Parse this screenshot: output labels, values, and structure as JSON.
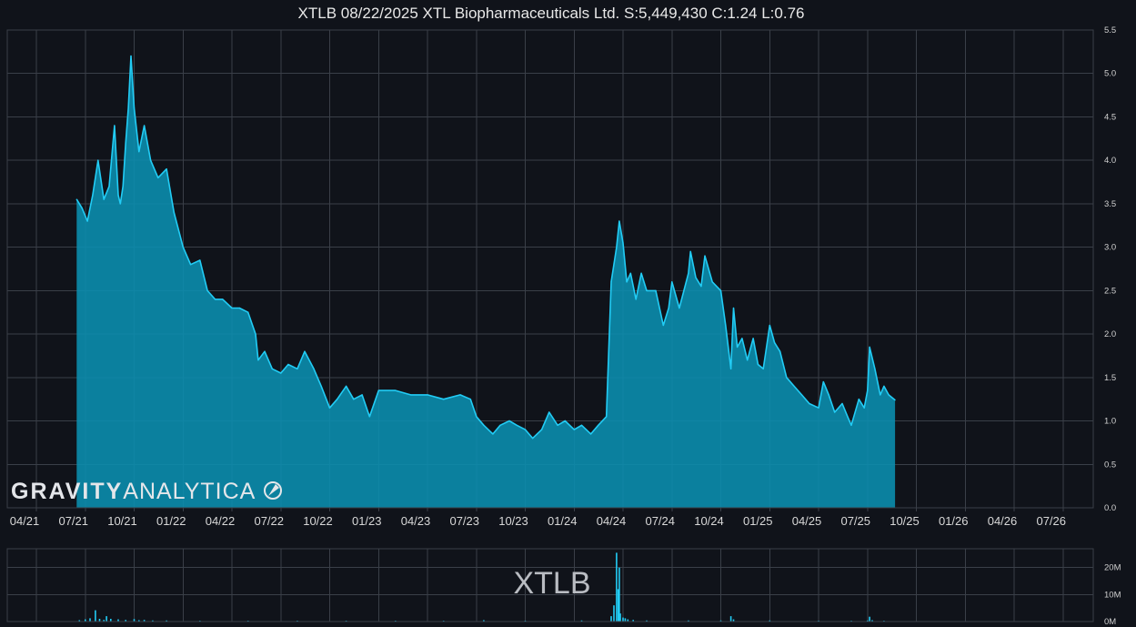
{
  "title": "XTLB 08/22/2025 XTL Biopharmaceuticals Ltd. S:5,449,430 C:1.24 L:0.76",
  "watermark": "XTLB",
  "logo": {
    "bold": "GRAVITY",
    "thin": "ANALYTICA"
  },
  "colors": {
    "background": "#10131a",
    "line": "#22ccf5",
    "fill": "#0a8fb0",
    "grid": "#3a3f48"
  },
  "chart_data": [
    {
      "type": "area",
      "title": "XTLB 08/22/2025 XTL Biopharmaceuticals Ltd. S:5,449,430 C:1.24 L:0.76",
      "x_ticks": [
        "04/21",
        "07/21",
        "10/21",
        "01/22",
        "04/22",
        "07/22",
        "10/22",
        "01/23",
        "04/23",
        "07/23",
        "10/23",
        "01/24",
        "04/24",
        "07/24",
        "10/24",
        "01/25",
        "04/25",
        "07/25",
        "10/25",
        "01/26",
        "04/26",
        "07/26"
      ],
      "y_ticks": [
        "0.0",
        "0.5",
        "1.0",
        "1.5",
        "2.0",
        "2.5",
        "3.0",
        "3.5",
        "4.0",
        "4.5",
        "5.0",
        "5.5"
      ],
      "xlim": [
        "2021-04-01",
        "2026-10-01"
      ],
      "ylim": [
        0,
        5.5
      ],
      "y_axis_side": "right",
      "grid": true,
      "x": [
        "2021-06-15",
        "2021-06-25",
        "2021-07-05",
        "2021-07-15",
        "2021-07-25",
        "2021-08-05",
        "2021-08-15",
        "2021-08-25",
        "2021-09-01",
        "2021-09-05",
        "2021-09-10",
        "2021-09-15",
        "2021-09-20",
        "2021-09-25",
        "2021-10-01",
        "2021-10-10",
        "2021-10-20",
        "2021-11-01",
        "2021-11-15",
        "2021-12-01",
        "2021-12-15",
        "2022-01-01",
        "2022-01-15",
        "2022-02-01",
        "2022-02-15",
        "2022-03-01",
        "2022-03-15",
        "2022-04-01",
        "2022-04-15",
        "2022-05-01",
        "2022-05-15",
        "2022-05-20",
        "2022-06-01",
        "2022-06-15",
        "2022-07-01",
        "2022-07-15",
        "2022-08-01",
        "2022-08-15",
        "2022-09-01",
        "2022-09-15",
        "2022-10-01",
        "2022-10-15",
        "2022-11-01",
        "2022-11-15",
        "2022-12-01",
        "2022-12-15",
        "2023-01-01",
        "2023-02-01",
        "2023-03-01",
        "2023-04-01",
        "2023-05-01",
        "2023-06-01",
        "2023-06-20",
        "2023-07-01",
        "2023-07-15",
        "2023-08-01",
        "2023-08-15",
        "2023-09-01",
        "2023-09-15",
        "2023-10-01",
        "2023-10-15",
        "2023-11-01",
        "2023-11-15",
        "2023-12-01",
        "2023-12-15",
        "2024-01-01",
        "2024-01-15",
        "2024-02-01",
        "2024-02-15",
        "2024-03-01",
        "2024-03-10",
        "2024-03-20",
        "2024-03-25",
        "2024-04-01",
        "2024-04-08",
        "2024-04-15",
        "2024-04-25",
        "2024-05-05",
        "2024-05-15",
        "2024-06-01",
        "2024-06-15",
        "2024-06-25",
        "2024-07-01",
        "2024-07-15",
        "2024-08-01",
        "2024-08-05",
        "2024-08-15",
        "2024-08-25",
        "2024-09-01",
        "2024-09-15",
        "2024-10-01",
        "2024-10-10",
        "2024-10-20",
        "2024-10-25",
        "2024-11-01",
        "2024-11-10",
        "2024-11-20",
        "2024-12-01",
        "2024-12-10",
        "2024-12-20",
        "2025-01-01",
        "2025-01-10",
        "2025-01-20",
        "2025-02-01",
        "2025-02-15",
        "2025-03-01",
        "2025-03-15",
        "2025-04-01",
        "2025-04-10",
        "2025-04-20",
        "2025-05-01",
        "2025-05-15",
        "2025-05-25",
        "2025-06-01",
        "2025-06-15",
        "2025-06-25",
        "2025-07-01",
        "2025-07-05",
        "2025-07-15",
        "2025-07-25",
        "2025-08-01",
        "2025-08-10",
        "2025-08-22"
      ],
      "y": [
        3.55,
        3.45,
        3.3,
        3.6,
        4.0,
        3.55,
        3.7,
        4.4,
        3.6,
        3.5,
        3.7,
        4.2,
        4.6,
        5.2,
        4.6,
        4.1,
        4.4,
        4.0,
        3.8,
        3.9,
        3.4,
        3.0,
        2.8,
        2.85,
        2.5,
        2.4,
        2.4,
        2.3,
        2.3,
        2.25,
        2.0,
        1.7,
        1.8,
        1.6,
        1.55,
        1.65,
        1.6,
        1.8,
        1.6,
        1.4,
        1.15,
        1.25,
        1.4,
        1.25,
        1.3,
        1.05,
        1.35,
        1.35,
        1.3,
        1.3,
        1.25,
        1.3,
        1.25,
        1.05,
        0.95,
        0.85,
        0.95,
        1.0,
        0.95,
        0.9,
        0.8,
        0.9,
        1.1,
        0.95,
        1.0,
        0.9,
        0.95,
        0.85,
        0.95,
        1.05,
        2.6,
        3.0,
        3.3,
        3.05,
        2.6,
        2.7,
        2.4,
        2.7,
        2.5,
        2.5,
        2.1,
        2.3,
        2.6,
        2.3,
        2.7,
        2.95,
        2.65,
        2.55,
        2.9,
        2.6,
        2.5,
        2.1,
        1.6,
        2.3,
        1.85,
        1.95,
        1.7,
        1.95,
        1.65,
        1.6,
        2.1,
        1.9,
        1.8,
        1.5,
        1.4,
        1.3,
        1.2,
        1.15,
        1.45,
        1.3,
        1.1,
        1.2,
        1.05,
        0.95,
        1.25,
        1.15,
        1.35,
        1.85,
        1.6,
        1.3,
        1.4,
        1.3,
        1.24
      ]
    },
    {
      "type": "bar",
      "name": "volume",
      "y_ticks": [
        "0M",
        "10M",
        "20M"
      ],
      "ylim": [
        0,
        27
      ],
      "y_axis_side": "right",
      "grid": true,
      "x": [
        "2021-06-20",
        "2021-07-01",
        "2021-07-10",
        "2021-07-20",
        "2021-07-28",
        "2021-08-05",
        "2021-08-10",
        "2021-08-18",
        "2021-09-01",
        "2021-09-15",
        "2021-10-01",
        "2021-10-10",
        "2021-10-20",
        "2021-11-05",
        "2021-12-01",
        "2022-02-01",
        "2022-05-01",
        "2022-08-01",
        "2022-11-01",
        "2023-02-01",
        "2023-05-01",
        "2023-07-15",
        "2023-10-01",
        "2024-01-15",
        "2024-03-10",
        "2024-03-15",
        "2024-03-20",
        "2024-03-23",
        "2024-03-25",
        "2024-03-27",
        "2024-04-01",
        "2024-04-05",
        "2024-04-10",
        "2024-04-20",
        "2024-05-15",
        "2024-08-01",
        "2024-10-01",
        "2024-10-20",
        "2024-10-25",
        "2025-01-01",
        "2025-04-01",
        "2025-06-01",
        "2025-07-01",
        "2025-07-05",
        "2025-07-10",
        "2025-08-01"
      ],
      "values": [
        0.5,
        0.8,
        1.2,
        4.2,
        1.0,
        0.6,
        2.0,
        1.0,
        0.8,
        0.6,
        0.9,
        0.5,
        0.6,
        0.4,
        0.4,
        0.3,
        0.3,
        0.3,
        0.3,
        0.3,
        0.3,
        0.5,
        0.3,
        0.4,
        2.0,
        6.0,
        25.5,
        12.0,
        20.0,
        3.0,
        1.5,
        1.2,
        0.8,
        0.6,
        0.4,
        0.4,
        0.4,
        2.0,
        0.8,
        0.4,
        0.3,
        0.3,
        0.4,
        1.8,
        0.5,
        0.3
      ]
    }
  ]
}
